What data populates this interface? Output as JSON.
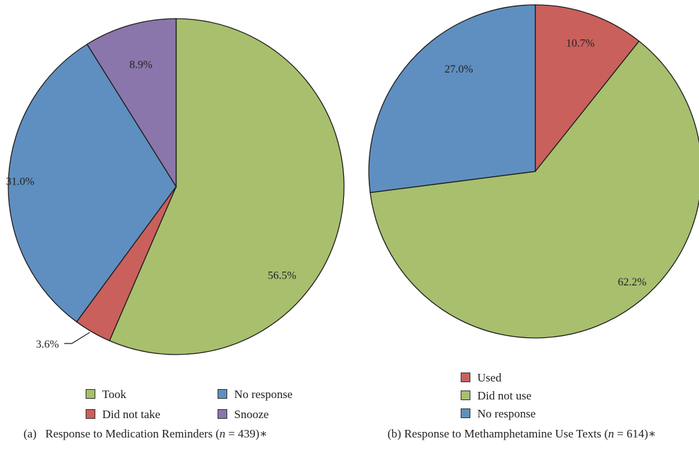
{
  "chart_data": [
    {
      "type": "pie",
      "caption_prefix": "(a)",
      "caption_text": "Response to Medication Reminders (",
      "caption_n_var": "n",
      "caption_n_rest": " = 439)∗",
      "slices": [
        {
          "name": "Took",
          "value": 56.5,
          "label": "56.5%",
          "color": "#a8bf6e"
        },
        {
          "name": "Did not take",
          "value": 3.6,
          "label": "3.6%",
          "color": "#c9605c"
        },
        {
          "name": "No response",
          "value": 31.0,
          "label": "31.0%",
          "color": "#5f8fc0"
        },
        {
          "name": "Snooze",
          "value": 8.9,
          "label": "8.9%",
          "color": "#8a76aa"
        }
      ],
      "legend": [
        "Took",
        "Did not take",
        "No response",
        "Snooze"
      ],
      "legend_placement": "bottom"
    },
    {
      "type": "pie",
      "caption_prefix": "(b)",
      "caption_text": "Response to Methamphetamine Use Texts (",
      "caption_n_var": "n",
      "caption_n_rest": " = 614)∗",
      "slices": [
        {
          "name": "Used",
          "value": 10.7,
          "label": "10.7%",
          "color": "#c9605c"
        },
        {
          "name": "Did not use",
          "value": 62.2,
          "label": "62.2%",
          "color": "#a8bf6e"
        },
        {
          "name": "No response",
          "value": 27.0,
          "label": "27.0%",
          "color": "#5f8fc0"
        }
      ],
      "legend": [
        "Used",
        "Did not use",
        "No response"
      ],
      "legend_placement": "bottom"
    }
  ]
}
